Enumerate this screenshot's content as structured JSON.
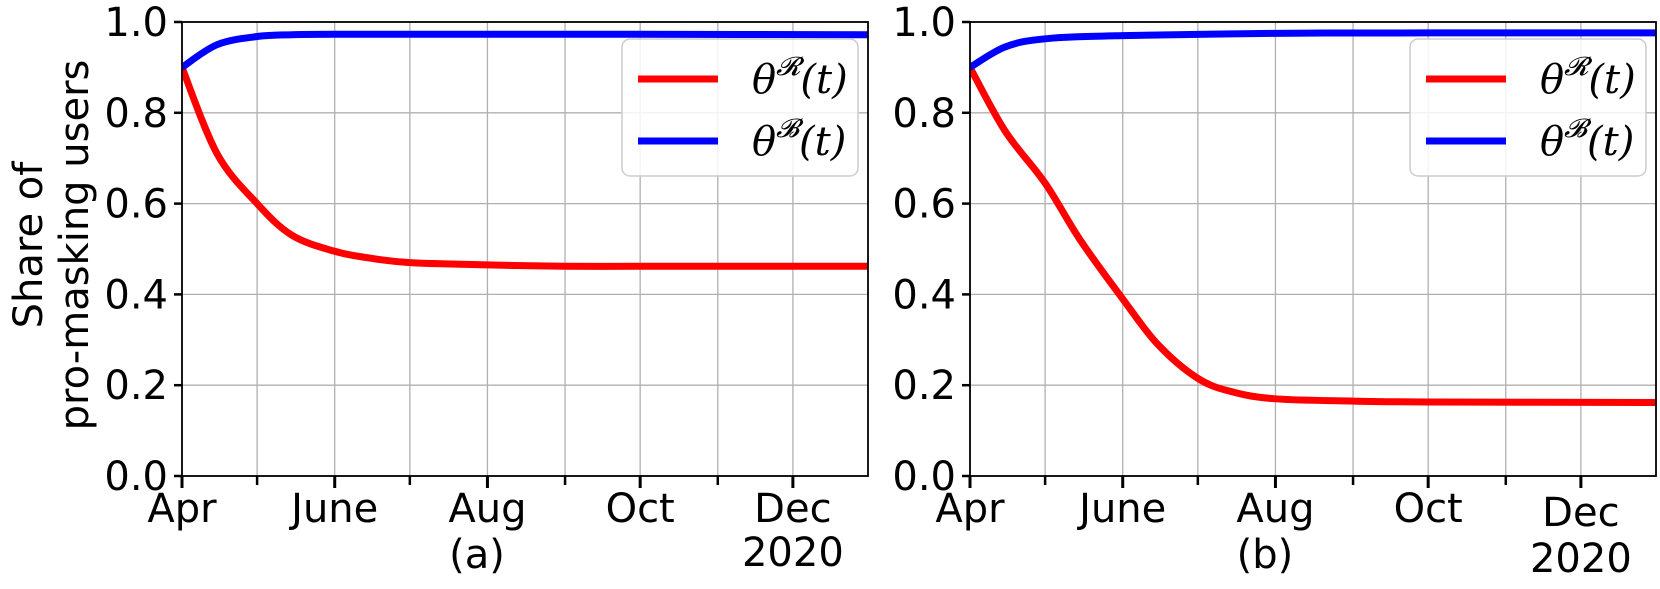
{
  "ylabel_line1": "Share of",
  "ylabel_line2": "pro-masking users",
  "colors": {
    "red_series": "#ff0000",
    "blue_series": "#0000ff",
    "grid": "#b0b0b0"
  },
  "chart_data": [
    {
      "type": "line",
      "caption": "(a)",
      "x_axis": {
        "type": "date",
        "range": [
          "2020-04-01",
          "2020-12-31"
        ],
        "tick_labels": [
          "Apr",
          "June",
          "Aug",
          "Oct",
          "Dec"
        ],
        "year_label": "2020"
      },
      "ylim": [
        0,
        1.0
      ],
      "yticks": [
        0.0,
        0.2,
        0.4,
        0.6,
        0.8,
        1.0
      ],
      "ytick_labels": [
        "0.0",
        "0.2",
        "0.4",
        "0.6",
        "0.8",
        "1.0"
      ],
      "grid": true,
      "legend_placement": "top-right",
      "series": [
        {
          "name": "θᴿ(t)",
          "symbol": "θ",
          "superscript": "𝓡",
          "arg": "(t)",
          "color": "#ff0000",
          "points": [
            [
              "2020-04-01",
              0.9
            ],
            [
              "2020-04-15",
              0.71
            ],
            [
              "2020-05-01",
              0.6
            ],
            [
              "2020-05-15",
              0.53
            ],
            [
              "2020-06-01",
              0.495
            ],
            [
              "2020-06-15",
              0.48
            ],
            [
              "2020-07-01",
              0.47
            ],
            [
              "2020-08-01",
              0.465
            ],
            [
              "2020-09-01",
              0.462
            ],
            [
              "2020-10-01",
              0.462
            ],
            [
              "2020-11-01",
              0.462
            ],
            [
              "2020-12-31",
              0.462
            ]
          ]
        },
        {
          "name": "θᴮ(t)",
          "symbol": "θ",
          "superscript": "𝓑",
          "arg": "(t)",
          "color": "#0000ff",
          "points": [
            [
              "2020-04-01",
              0.9
            ],
            [
              "2020-04-15",
              0.95
            ],
            [
              "2020-05-01",
              0.968
            ],
            [
              "2020-05-15",
              0.972
            ],
            [
              "2020-06-01",
              0.973
            ],
            [
              "2020-08-01",
              0.973
            ],
            [
              "2020-10-01",
              0.973
            ],
            [
              "2020-12-31",
              0.972
            ]
          ]
        }
      ]
    },
    {
      "type": "line",
      "caption": "(b)",
      "x_axis": {
        "type": "date",
        "range": [
          "2020-04-01",
          "2020-12-31"
        ],
        "tick_labels": [
          "Apr",
          "June",
          "Aug",
          "Oct",
          "Dec"
        ],
        "year_label": "2020"
      },
      "ylim": [
        0,
        1.0
      ],
      "yticks": [
        0.0,
        0.2,
        0.4,
        0.6,
        0.8,
        1.0
      ],
      "ytick_labels": [
        "0.0",
        "0.2",
        "0.4",
        "0.6",
        "0.8",
        "1.0"
      ],
      "grid": true,
      "legend_placement": "top-right",
      "series": [
        {
          "name": "θᴿ(t)",
          "symbol": "θ",
          "superscript": "𝓡",
          "arg": "(t)",
          "color": "#ff0000",
          "points": [
            [
              "2020-04-01",
              0.9
            ],
            [
              "2020-04-15",
              0.76
            ],
            [
              "2020-05-01",
              0.645
            ],
            [
              "2020-05-15",
              0.52
            ],
            [
              "2020-06-01",
              0.39
            ],
            [
              "2020-06-15",
              0.29
            ],
            [
              "2020-07-01",
              0.215
            ],
            [
              "2020-07-15",
              0.185
            ],
            [
              "2020-08-01",
              0.17
            ],
            [
              "2020-09-01",
              0.165
            ],
            [
              "2020-10-01",
              0.163
            ],
            [
              "2020-12-31",
              0.162
            ]
          ]
        },
        {
          "name": "θᴮ(t)",
          "symbol": "θ",
          "superscript": "𝓑",
          "arg": "(t)",
          "color": "#0000ff",
          "points": [
            [
              "2020-04-01",
              0.9
            ],
            [
              "2020-04-15",
              0.945
            ],
            [
              "2020-05-01",
              0.963
            ],
            [
              "2020-06-01",
              0.97
            ],
            [
              "2020-08-01",
              0.975
            ],
            [
              "2020-10-01",
              0.976
            ],
            [
              "2020-12-31",
              0.976
            ]
          ]
        }
      ]
    }
  ]
}
